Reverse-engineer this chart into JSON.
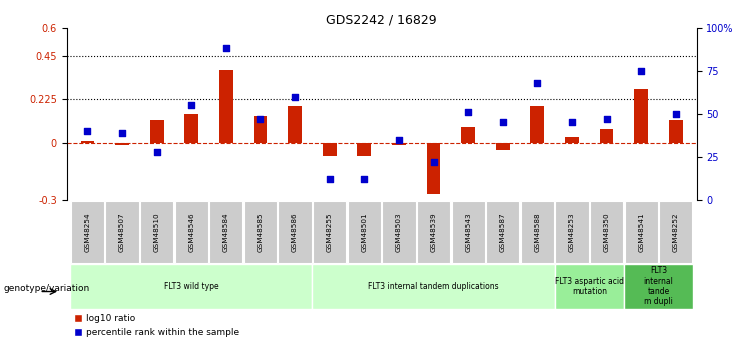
{
  "title": "GDS2242 / 16829",
  "samples": [
    "GSM48254",
    "GSM48507",
    "GSM48510",
    "GSM48546",
    "GSM48584",
    "GSM48585",
    "GSM48586",
    "GSM48255",
    "GSM48501",
    "GSM48503",
    "GSM48539",
    "GSM48543",
    "GSM48587",
    "GSM48588",
    "GSM48253",
    "GSM48350",
    "GSM48541",
    "GSM48252"
  ],
  "log10_ratio": [
    0.01,
    -0.01,
    0.12,
    0.15,
    0.38,
    0.14,
    0.19,
    -0.07,
    -0.07,
    -0.01,
    -0.27,
    0.08,
    -0.04,
    0.19,
    0.03,
    0.07,
    0.28,
    0.12
  ],
  "percentile_rank": [
    40,
    39,
    28,
    55,
    88,
    47,
    60,
    12,
    12,
    35,
    22,
    51,
    45,
    68,
    45,
    47,
    75,
    50
  ],
  "groups": [
    {
      "label": "FLT3 wild type",
      "start": 0,
      "end": 7,
      "color": "#ccffcc"
    },
    {
      "label": "FLT3 internal tandem duplications",
      "start": 7,
      "end": 14,
      "color": "#ccffcc"
    },
    {
      "label": "FLT3 aspartic acid\nmutation",
      "start": 14,
      "end": 16,
      "color": "#99ee99"
    },
    {
      "label": "FLT3\ninternal\ntande\nm dupli",
      "start": 16,
      "end": 18,
      "color": "#55bb55"
    }
  ],
  "ylim_left": [
    -0.3,
    0.6
  ],
  "ylim_right": [
    0,
    100
  ],
  "yticks_left": [
    -0.3,
    0.0,
    0.225,
    0.45,
    0.6
  ],
  "yticks_left_labels": [
    "-0.3",
    "0",
    "0.225",
    "0.45",
    "0.6"
  ],
  "yticks_right": [
    0,
    25,
    50,
    75,
    100
  ],
  "yticks_right_labels": [
    "0",
    "25",
    "50",
    "75",
    "100%"
  ],
  "hlines": [
    0.225,
    0.45
  ],
  "bar_color": "#cc2200",
  "scatter_color": "#0000cc",
  "background_color": "#ffffff",
  "genotype_label": "genotype/variation",
  "legend_items": [
    "log10 ratio",
    "percentile rank within the sample"
  ]
}
